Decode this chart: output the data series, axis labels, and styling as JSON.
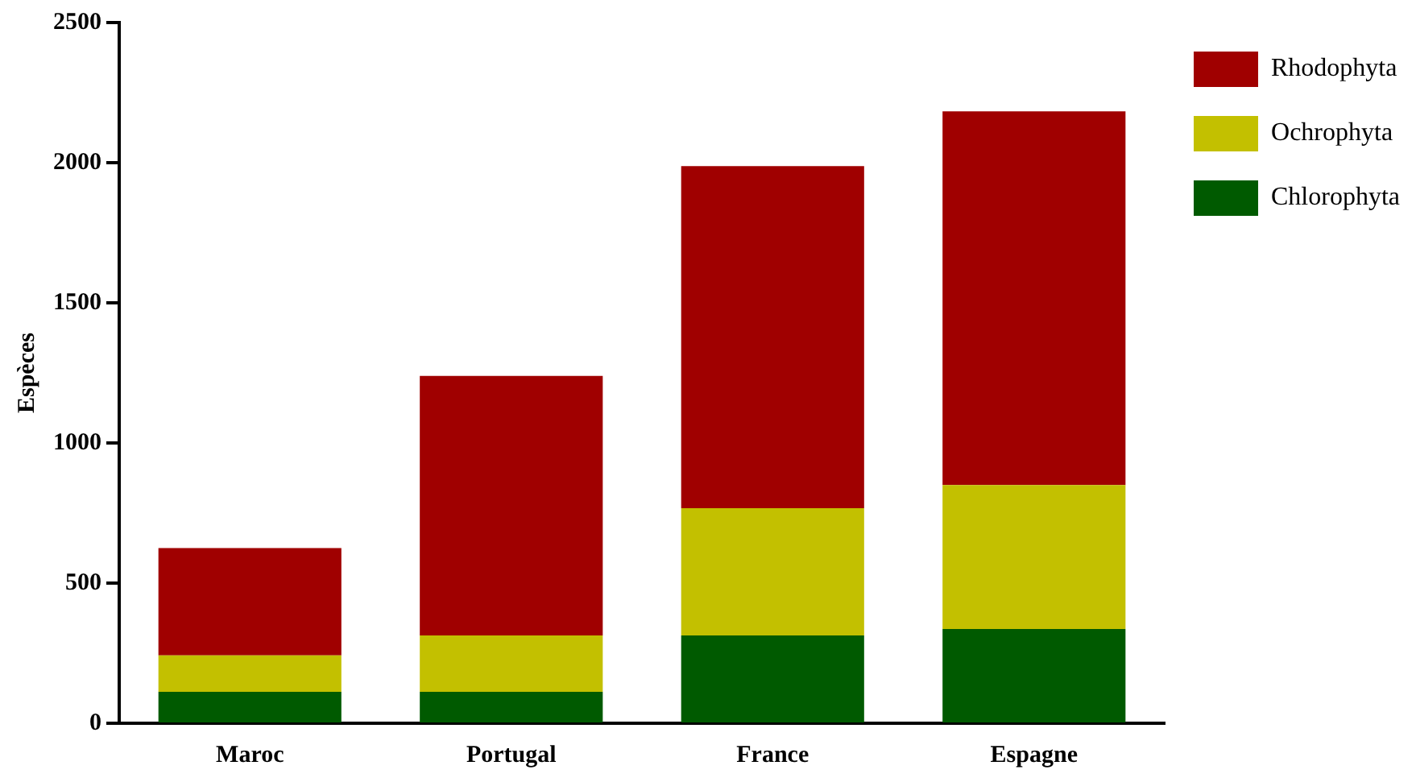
{
  "chart_data": {
    "type": "bar",
    "ylabel": "Espèces",
    "categories": [
      "Maroc",
      "Portugal",
      "France",
      "Espagne"
    ],
    "stacked": true,
    "ylim": [
      0,
      2500
    ],
    "yticks": [
      0,
      500,
      1000,
      1500,
      2000,
      2500
    ],
    "grid": false,
    "legend": "right",
    "series": [
      {
        "name": "Chlorophyta",
        "color": "#005a00",
        "values": [
          112,
          112,
          313,
          336
        ]
      },
      {
        "name": "Ochrophyta",
        "color": "#c3c000",
        "values": [
          130,
          201,
          454,
          514
        ]
      },
      {
        "name": "Rhodophyta",
        "color": "#a00000",
        "values": [
          383,
          926,
          1221,
          1333
        ]
      }
    ]
  }
}
